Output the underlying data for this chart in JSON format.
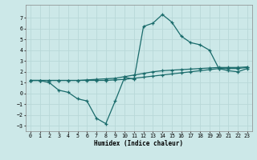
{
  "title": "",
  "xlabel": "Humidex (Indice chaleur)",
  "bg_color": "#cce8e8",
  "grid_color": "#aacccc",
  "line_color": "#1a6b6b",
  "xlim": [
    -0.5,
    23.5
  ],
  "ylim": [
    -3.5,
    8.2
  ],
  "xticks": [
    0,
    1,
    2,
    3,
    4,
    5,
    6,
    7,
    8,
    9,
    10,
    11,
    12,
    13,
    14,
    15,
    16,
    17,
    18,
    19,
    20,
    21,
    22,
    23
  ],
  "yticks": [
    -3,
    -2,
    -1,
    0,
    1,
    2,
    3,
    4,
    5,
    6,
    7
  ],
  "line1_x": [
    0,
    1,
    2,
    3,
    4,
    5,
    6,
    7,
    8,
    9,
    10,
    11,
    12,
    13,
    14,
    15,
    16,
    17,
    18,
    19,
    20,
    21,
    22,
    23
  ],
  "line1_y": [
    1.2,
    1.2,
    1.0,
    0.3,
    0.1,
    -0.5,
    -0.7,
    -2.3,
    -2.8,
    -0.7,
    1.5,
    1.3,
    6.2,
    6.5,
    7.3,
    6.6,
    5.3,
    4.7,
    4.5,
    4.0,
    2.3,
    2.1,
    2.0,
    2.3
  ],
  "line2_x": [
    0,
    1,
    2,
    3,
    4,
    5,
    6,
    7,
    8,
    9,
    10,
    11,
    12,
    13,
    14,
    15,
    16,
    17,
    18,
    19,
    20,
    21,
    22,
    23
  ],
  "line2_y": [
    1.2,
    1.2,
    1.2,
    1.2,
    1.2,
    1.2,
    1.25,
    1.3,
    1.35,
    1.4,
    1.55,
    1.7,
    1.85,
    2.0,
    2.1,
    2.15,
    2.2,
    2.25,
    2.3,
    2.35,
    2.4,
    2.4,
    2.4,
    2.45
  ],
  "line3_x": [
    0,
    1,
    2,
    3,
    4,
    5,
    6,
    7,
    8,
    9,
    10,
    11,
    12,
    13,
    14,
    15,
    16,
    17,
    18,
    19,
    20,
    21,
    22,
    23
  ],
  "line3_y": [
    1.2,
    1.2,
    1.2,
    1.2,
    1.2,
    1.2,
    1.2,
    1.2,
    1.2,
    1.25,
    1.3,
    1.4,
    1.5,
    1.6,
    1.7,
    1.8,
    1.9,
    2.0,
    2.1,
    2.2,
    2.3,
    2.3,
    2.3,
    2.4
  ]
}
